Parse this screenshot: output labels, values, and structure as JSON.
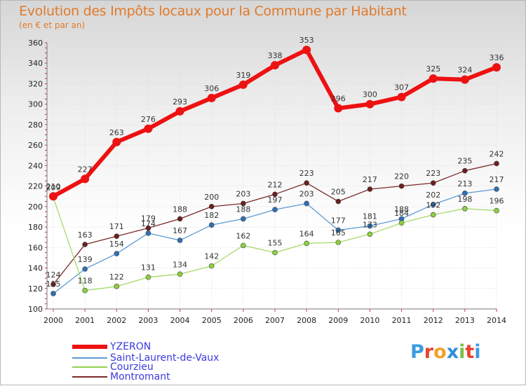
{
  "title": "Evolution des Impôts locaux pour la Commune par Habitant",
  "subtitle": "(en € et par an)",
  "brand": {
    "text": "Proxiti",
    "letters": [
      "P",
      "r",
      "o",
      "x",
      "i",
      "t",
      "i"
    ],
    "colors": [
      "#3b9be3",
      "#e8432d",
      "#f2a12a",
      "#2f8fd8",
      "#7bc043",
      "#e8432d",
      "#3b9be3"
    ]
  },
  "chart_data": {
    "type": "line",
    "title": "Evolution des Impôts locaux pour la Commune par Habitant",
    "subtitle": "(en € et par an)",
    "x": [
      2000,
      2001,
      2002,
      2003,
      2004,
      2005,
      2006,
      2007,
      2008,
      2009,
      2010,
      2011,
      2012,
      2013,
      2014
    ],
    "ylim": [
      100,
      360
    ],
    "yticks": [
      100,
      120,
      140,
      160,
      180,
      200,
      220,
      240,
      260,
      280,
      300,
      320,
      340,
      360
    ],
    "grid": true,
    "legend_position": "bottom-left",
    "series": [
      {
        "name": "YZERON",
        "color": "#ee1111",
        "values": [
          210,
          227,
          263,
          276,
          293,
          306,
          319,
          338,
          353,
          296,
          300,
          307,
          325,
          324,
          336
        ]
      },
      {
        "name": "Saint-Laurent-de-Vaux",
        "color": "#5b9bd5",
        "values": [
          115,
          139,
          154,
          174,
          167,
          182,
          188,
          197,
          203,
          177,
          181,
          188,
          202,
          213,
          217
        ]
      },
      {
        "name": "Courzieu",
        "color": "#92d050",
        "values": [
          209,
          118,
          122,
          131,
          134,
          142,
          162,
          155,
          164,
          165,
          173,
          184,
          192,
          198,
          196
        ]
      },
      {
        "name": "Montromant",
        "color": "#7b2a2a",
        "values": [
          124,
          163,
          171,
          179,
          188,
          200,
          203,
          212,
          223,
          205,
          217,
          220,
          223,
          235,
          242
        ]
      }
    ]
  }
}
